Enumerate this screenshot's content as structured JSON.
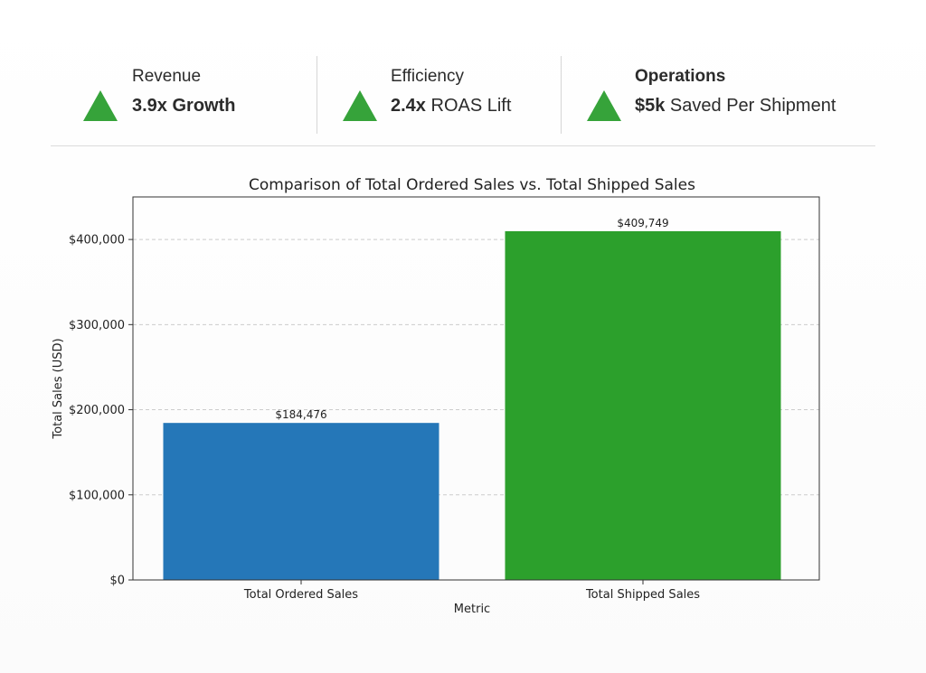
{
  "kpis": [
    {
      "label": "Revenue",
      "value_strong": "3.9x Growth",
      "value_rest": ""
    },
    {
      "label": "Efficiency",
      "value_strong": "2.4x",
      "value_rest": " ROAS Lift"
    },
    {
      "label": "Operations",
      "value_strong": "$5k",
      "value_rest": " Saved Per Shipment"
    }
  ],
  "colors": {
    "kpi_triangle": "#36a33a",
    "bar_ordered": "#2577b8",
    "bar_shipped": "#2ca02c",
    "grid": "#cccccc",
    "axis": "#333333"
  },
  "chart_data": {
    "type": "bar",
    "title": "Comparison of Total Ordered Sales vs. Total Shipped Sales",
    "xlabel": "Metric",
    "ylabel": "Total Sales (USD)",
    "categories": [
      "Total Ordered Sales",
      "Total Shipped Sales"
    ],
    "values": [
      184476,
      409749
    ],
    "data_labels": [
      "$184,476",
      "$409,749"
    ],
    "ylim": [
      0,
      450000
    ],
    "yticks": [
      0,
      100000,
      200000,
      300000,
      400000
    ],
    "ytick_labels": [
      "$0",
      "$100,000",
      "$200,000",
      "$300,000",
      "$400,000"
    ],
    "grid": true
  }
}
